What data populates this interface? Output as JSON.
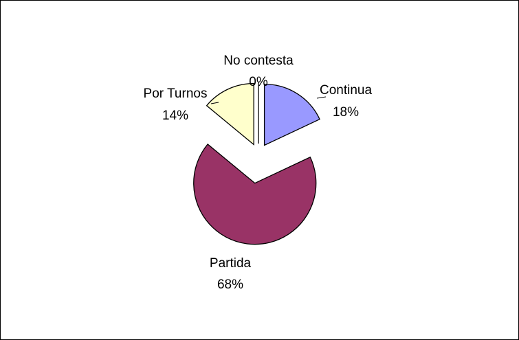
{
  "chart_data": {
    "type": "pie",
    "title": "",
    "exploded": true,
    "slices": [
      {
        "label": "Continua",
        "value": 18,
        "value_label": "18%",
        "color": "#9999FF"
      },
      {
        "label": "Partida",
        "value": 68,
        "value_label": "68%",
        "color": "#993366"
      },
      {
        "label": "Por Turnos",
        "value": 14,
        "value_label": "14%",
        "color": "#FFFFCC"
      },
      {
        "label": "No contesta",
        "value": 0,
        "value_label": "0%",
        "color": "#CCFFFF"
      }
    ],
    "legend": "none"
  }
}
